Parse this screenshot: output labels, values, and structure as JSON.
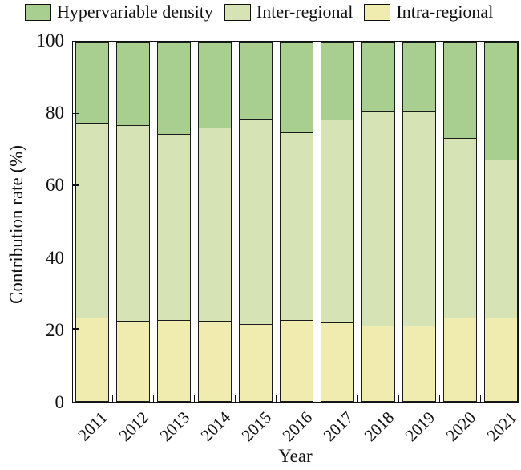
{
  "legend": {
    "items": [
      {
        "label": "Hypervariable density",
        "color": "#a8cf90"
      },
      {
        "label": "Inter-regional",
        "color": "#d6e3b5"
      },
      {
        "label": "Intra-regional",
        "color": "#f0ebae"
      }
    ]
  },
  "chart_data": {
    "type": "bar",
    "stacked": true,
    "title": "",
    "xlabel": "Year",
    "ylabel": "Contribution rate (%)",
    "categories": [
      "2011",
      "2012",
      "2013",
      "2014",
      "2015",
      "2016",
      "2017",
      "2018",
      "2019",
      "2020",
      "2021"
    ],
    "series": [
      {
        "name": "Intra-regional",
        "color": "#f0ebae",
        "values": [
          23.2,
          22.3,
          22.6,
          22.3,
          21.3,
          22.4,
          21.9,
          20.9,
          21.0,
          23.2,
          23.2
        ]
      },
      {
        "name": "Inter-regional",
        "color": "#d6e3b5",
        "values": [
          54.1,
          54.4,
          51.5,
          53.6,
          57.2,
          52.3,
          56.2,
          59.6,
          59.4,
          49.8,
          43.8
        ]
      },
      {
        "name": "Hypervariable density",
        "color": "#a8cf90",
        "values": [
          22.7,
          23.3,
          25.9,
          24.1,
          21.5,
          25.3,
          21.9,
          19.5,
          19.6,
          27.0,
          33.0
        ]
      }
    ],
    "ylim": [
      0,
      100
    ],
    "yticks": [
      0,
      20,
      40,
      60,
      80,
      100
    ],
    "legend_position": "top",
    "grid": false,
    "bar_outline_color": "#1c1c1c"
  }
}
